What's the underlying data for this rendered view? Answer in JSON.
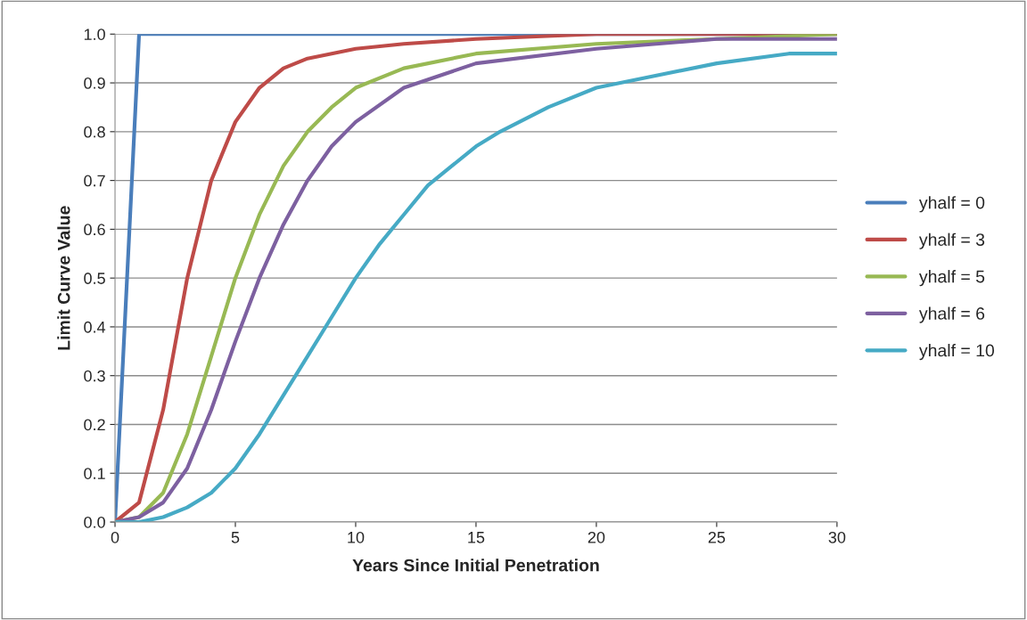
{
  "chart_data": {
    "type": "line",
    "xlabel": "Years Since Initial Penetration",
    "ylabel": "Limit Curve Value",
    "xlim": [
      0,
      30
    ],
    "xticks": [
      0,
      5,
      10,
      15,
      20,
      25,
      30
    ],
    "ylim": [
      0,
      1
    ],
    "yticks": [
      {
        "value": 0,
        "label": "0.0"
      },
      0.1,
      0.2,
      0.3,
      0.4,
      0.5,
      0.6,
      0.7,
      0.8,
      0.9,
      {
        "value": 1,
        "label": "1.0"
      }
    ],
    "grid": "y",
    "legend": "right",
    "marker": "none",
    "line_style": "solid",
    "series": [
      {
        "name": "yhalf = 0",
        "color": "#4a7ebb",
        "x": [
          0,
          1,
          30
        ],
        "values": [
          0,
          1,
          1
        ]
      },
      {
        "name": "yhalf = 3",
        "color": "#be4b48",
        "x": [
          0,
          1,
          2,
          3,
          4,
          5,
          6,
          7,
          8,
          9,
          10,
          12,
          15,
          20,
          25,
          30
        ],
        "values": [
          0,
          0.04,
          0.23,
          0.5,
          0.7,
          0.82,
          0.89,
          0.93,
          0.95,
          0.96,
          0.97,
          0.98,
          0.99,
          1.0,
          1.0,
          1.0
        ]
      },
      {
        "name": "yhalf = 5",
        "color": "#98b954",
        "x": [
          0,
          1,
          2,
          3,
          4,
          5,
          6,
          7,
          8,
          9,
          10,
          12,
          15,
          20,
          25,
          30
        ],
        "values": [
          0,
          0.01,
          0.06,
          0.18,
          0.34,
          0.5,
          0.63,
          0.73,
          0.8,
          0.85,
          0.89,
          0.93,
          0.96,
          0.98,
          0.99,
          1.0
        ]
      },
      {
        "name": "yhalf = 6",
        "color": "#7d60a0",
        "x": [
          0,
          1,
          2,
          3,
          4,
          5,
          6,
          7,
          8,
          9,
          10,
          12,
          15,
          20,
          25,
          30
        ],
        "values": [
          0,
          0.01,
          0.04,
          0.11,
          0.23,
          0.37,
          0.5,
          0.61,
          0.7,
          0.77,
          0.82,
          0.89,
          0.94,
          0.97,
          0.99,
          0.99
        ]
      },
      {
        "name": "yhalf = 10",
        "color": "#46aac5",
        "x": [
          0,
          1,
          2,
          3,
          4,
          5,
          6,
          7,
          8,
          9,
          10,
          11,
          12,
          13,
          14,
          15,
          16,
          18,
          20,
          22,
          25,
          28,
          30
        ],
        "values": [
          0,
          0.0,
          0.01,
          0.03,
          0.06,
          0.11,
          0.18,
          0.26,
          0.34,
          0.42,
          0.5,
          0.57,
          0.63,
          0.69,
          0.73,
          0.77,
          0.8,
          0.85,
          0.89,
          0.91,
          0.94,
          0.96,
          0.96
        ]
      }
    ]
  }
}
